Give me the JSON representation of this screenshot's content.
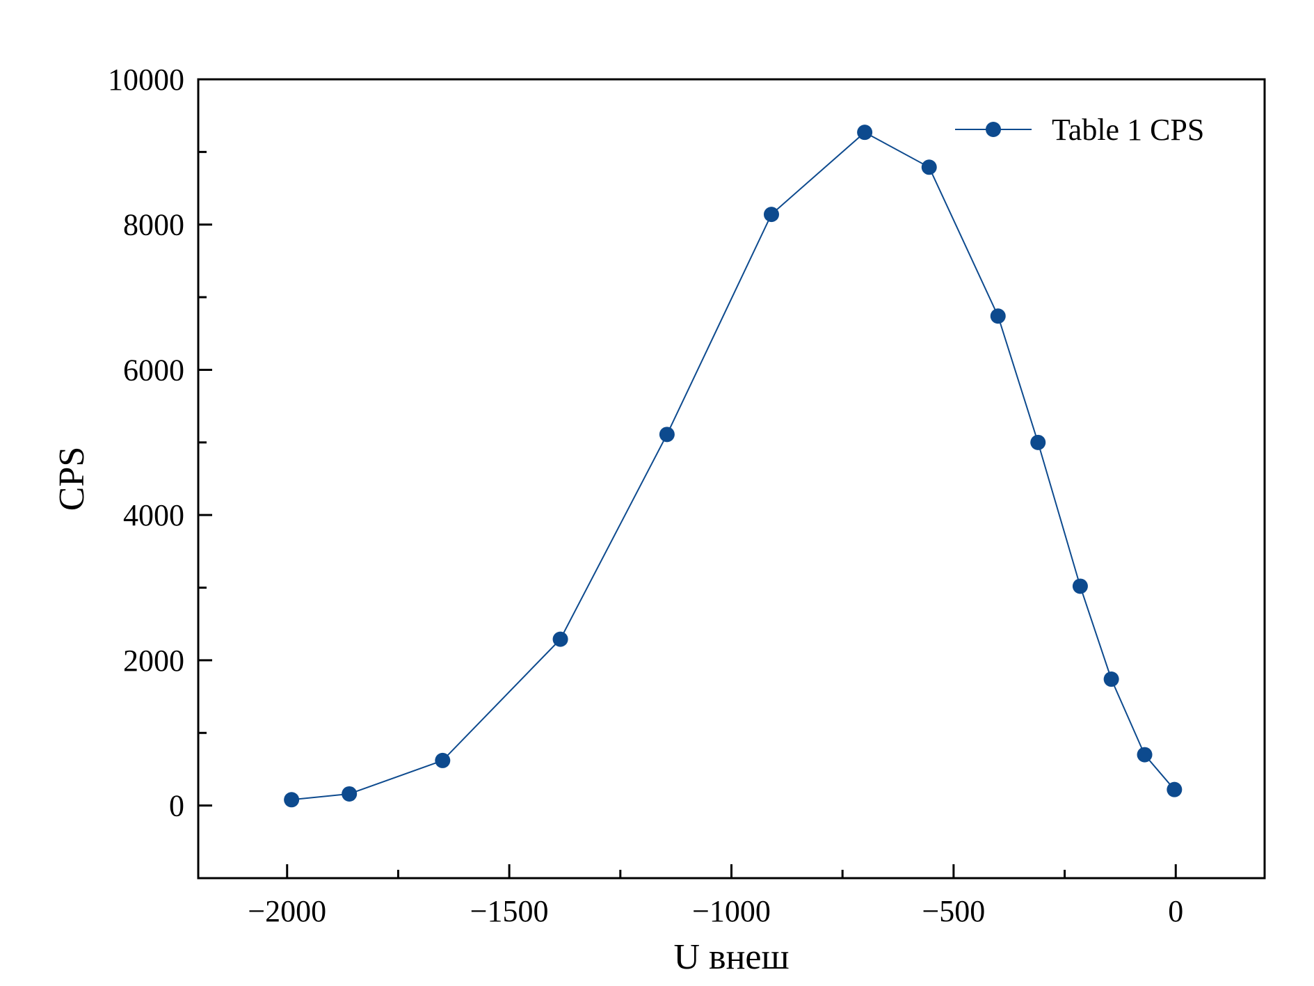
{
  "chart_data": {
    "type": "line",
    "title": "",
    "xlabel": "U внеш",
    "ylabel": "CPS",
    "xlim": [
      -2200,
      200
    ],
    "ylim": [
      -1000,
      10000
    ],
    "x_ticks": [
      -2000,
      -1500,
      -1000,
      -500,
      0
    ],
    "x_tick_labels": [
      "−2000",
      "−1500",
      "−1000",
      "−500",
      "0"
    ],
    "y_ticks": [
      0,
      2000,
      4000,
      6000,
      8000,
      10000
    ],
    "y_tick_labels": [
      "0",
      "2000",
      "4000",
      "6000",
      "8000",
      "10000"
    ],
    "x_minor_ticks": [
      -1750,
      -1250,
      -750,
      -250
    ],
    "y_minor_ticks": [
      1000,
      3000,
      5000,
      7000,
      9000
    ],
    "grid": false,
    "legend_position": "top-right",
    "series": [
      {
        "name": "Table 1 CPS",
        "color": "#0d4a8e",
        "marker": "circle",
        "x": [
          -1990,
          -1860,
          -1650,
          -1385,
          -1145,
          -910,
          -700,
          -555,
          -400,
          -310,
          -215,
          -145,
          -70,
          -3
        ],
        "y": [
          80,
          160,
          620,
          2290,
          5110,
          8140,
          9270,
          8790,
          6740,
          5000,
          3020,
          1740,
          700,
          220
        ]
      }
    ]
  }
}
